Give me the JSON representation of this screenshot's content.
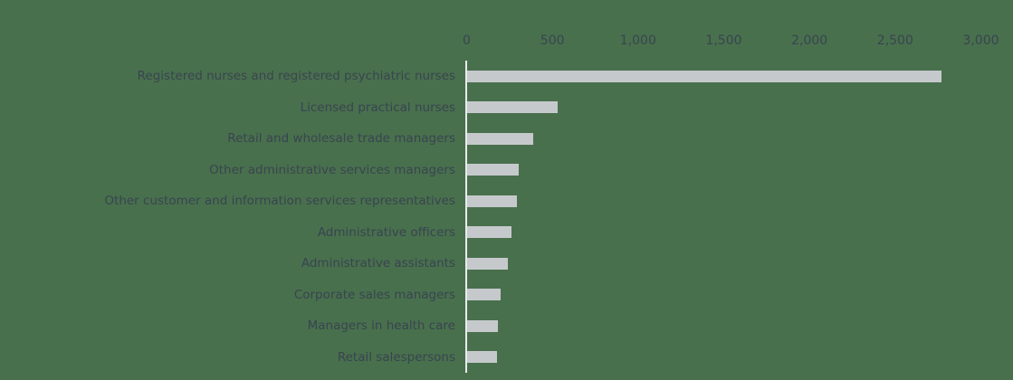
{
  "chart_data": {
    "type": "bar",
    "orientation": "horizontal",
    "title": "",
    "xlabel": "",
    "ylabel": "",
    "categories": [
      "Registered nurses and registered psychiatric nurses",
      "Licensed practical nurses",
      "Retail and wholesale trade managers",
      "Other administrative services managers",
      "Other customer and information services representatives",
      "Administrative officers",
      "Administrative assistants",
      "Corporate sales managers",
      "Managers in health care",
      "Retail salespersons"
    ],
    "values": [
      2770,
      530,
      385,
      300,
      290,
      260,
      240,
      195,
      180,
      175
    ],
    "xlim": [
      0,
      3000
    ],
    "xticks": [
      0,
      500,
      1000,
      1500,
      2000,
      2500,
      3000
    ],
    "xtick_labels": [
      "0",
      "500",
      "1,000",
      "1,500",
      "2,000",
      "2,500",
      "3,000"
    ],
    "grid": false,
    "legend_position": "none",
    "colors": {
      "background": "#48704D",
      "bar": "#C6C9CC",
      "axis_line": "#E9EBEC",
      "text": "#3A4450"
    }
  }
}
